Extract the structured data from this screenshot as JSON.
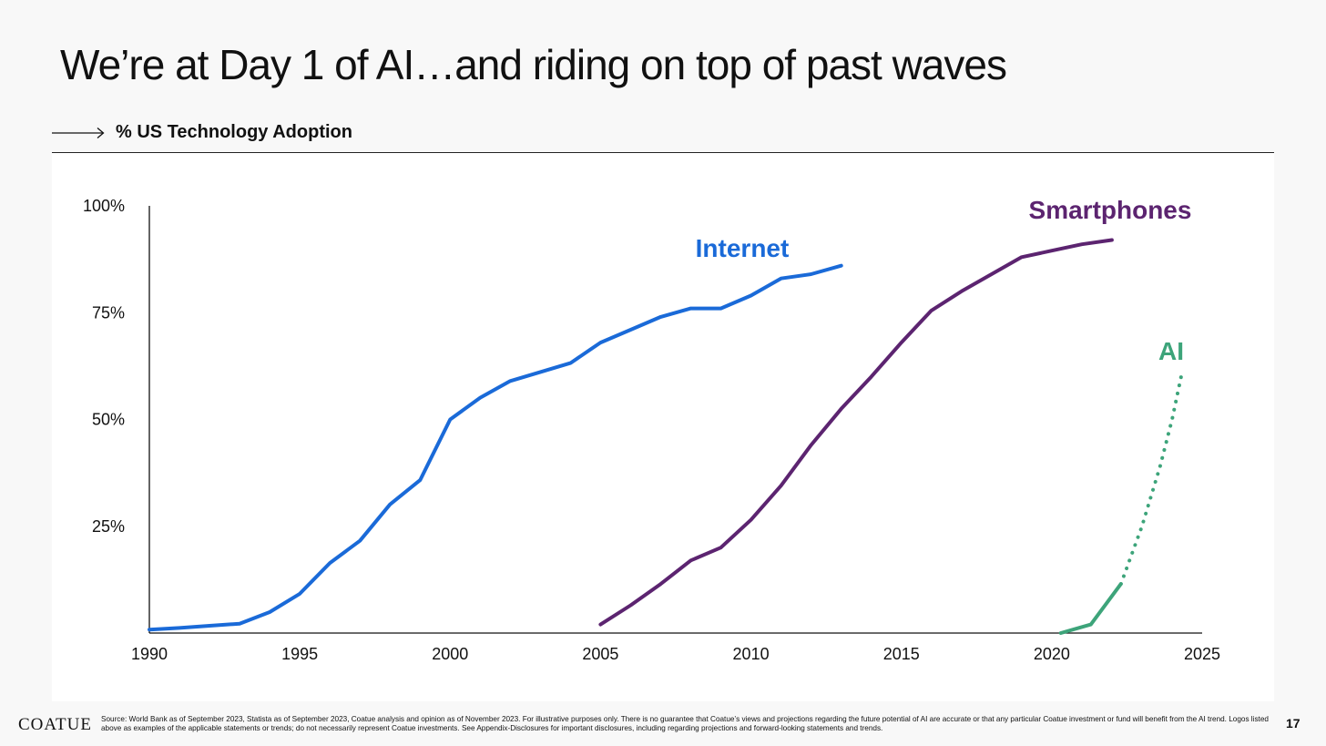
{
  "slide": {
    "title": "We’re at Day 1 of AI…and riding on top of past waves",
    "subtitle": "% US Technology Adoption",
    "footer_logo": "COATUE",
    "footer_source": "Source: World Bank as of September 2023, Statista as of September 2023, Coatue analysis and opinion as of November 2023. For illustrative purposes only. There is no guarantee that Coatue’s views and projections regarding the future potential of AI are accurate or that any particular Coatue investment or fund will benefit from the AI trend. Logos listed above as examples of the applicable statements or trends; do not necessarily represent Coatue investments. See Appendix-Disclosures for important disclosures, including regarding projections and forward-looking statements and trends.",
    "page_number": "17"
  },
  "chart_data": {
    "type": "line",
    "title": "",
    "xlabel": "",
    "ylabel": "",
    "xlim": [
      1990,
      2025
    ],
    "ylim": [
      0,
      100
    ],
    "x_ticks": [
      1990,
      1995,
      2000,
      2005,
      2010,
      2015,
      2020,
      2025
    ],
    "x_tick_labels": [
      "1990",
      "1995",
      "2000",
      "2005",
      "2010",
      "2015",
      "2020",
      "2025"
    ],
    "y_ticks": [
      25,
      50,
      75,
      100
    ],
    "y_tick_labels": [
      "25%",
      "50%",
      "75%",
      "100%"
    ],
    "grid": false,
    "legend": "inline labels",
    "series": [
      {
        "name": "Internet",
        "color": "#1a6ad8",
        "style": "solid",
        "x": [
          1990,
          1991,
          1992,
          1993,
          1994,
          1995,
          1996,
          1997,
          1998,
          1999,
          2000,
          2001,
          2002,
          2003,
          2004,
          2005,
          2006,
          2007,
          2008,
          2009,
          2010,
          2011,
          2012,
          2013
        ],
        "y": [
          0.8,
          1.2,
          1.7,
          2.2,
          4.9,
          9.2,
          16.4,
          21.6,
          30.1,
          35.8,
          50.0,
          55.1,
          59.0,
          61.1,
          63.2,
          68.0,
          71.0,
          74.0,
          76.0,
          76.0,
          79.0,
          83.0,
          84.0,
          86.0
        ]
      },
      {
        "name": "Smartphones",
        "color": "#5c2470",
        "style": "solid",
        "x": [
          2005,
          2006,
          2007,
          2008,
          2009,
          2010,
          2011,
          2012,
          2013,
          2014,
          2015,
          2016,
          2017,
          2018,
          2019,
          2020,
          2021,
          2022
        ],
        "y": [
          2.0,
          6.5,
          11.5,
          17.0,
          20.0,
          26.5,
          34.5,
          44.0,
          52.5,
          60.0,
          68.0,
          75.5,
          80.0,
          84.0,
          88.0,
          89.5,
          91.0,
          92.0
        ]
      },
      {
        "name": "AI",
        "color": "#3da47a",
        "style": "solid",
        "x": [
          2020.3,
          2021.3,
          2022.3
        ],
        "y": [
          0.0,
          2.0,
          11.5
        ]
      },
      {
        "name": "AI projection",
        "color": "#3da47a",
        "style": "dotted",
        "x": [
          2022.3,
          2023.0,
          2023.6,
          2024.0,
          2024.3
        ],
        "y": [
          11.5,
          25.0,
          39.0,
          50.0,
          60.0
        ]
      }
    ],
    "annotations": [
      {
        "text": "Internet",
        "color": "#1a6ad8"
      },
      {
        "text": "Smartphones",
        "color": "#5c2470"
      },
      {
        "text": "AI",
        "color": "#3da47a"
      }
    ]
  }
}
